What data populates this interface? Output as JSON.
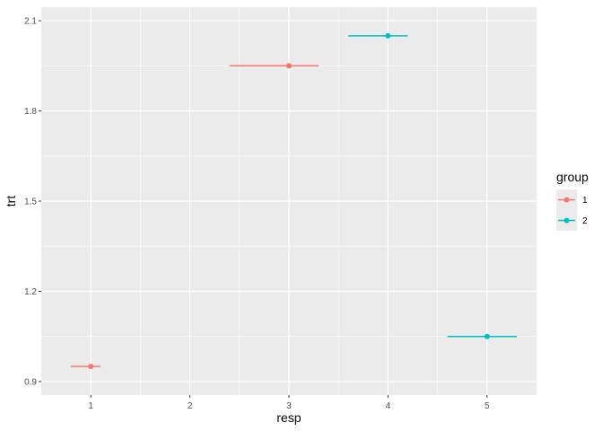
{
  "chart_data": {
    "type": "scatter",
    "title": "",
    "xlabel": "resp",
    "ylabel": "trt",
    "xlim": [
      0.5,
      5.5
    ],
    "ylim": [
      0.855,
      2.145
    ],
    "x_ticks": [
      1,
      2,
      3,
      4,
      5
    ],
    "y_ticks": [
      0.9,
      1.2,
      1.5,
      1.8,
      2.1
    ],
    "y_tick_labels": [
      "0.9",
      "1.2",
      "1.5",
      "1.8",
      "2.1"
    ],
    "grid": true,
    "legend": {
      "title": "group",
      "placement": "right",
      "entries": [
        {
          "label": "1",
          "color": "#F8766D"
        },
        {
          "label": "2",
          "color": "#00BFC4"
        }
      ]
    },
    "points": [
      {
        "group": "1",
        "x": 1,
        "y": 0.95,
        "xmin": 0.8,
        "xmax": 1.1
      },
      {
        "group": "1",
        "x": 3,
        "y": 1.95,
        "xmin": 2.4,
        "xmax": 3.3
      },
      {
        "group": "2",
        "x": 4,
        "y": 2.05,
        "xmin": 3.6,
        "xmax": 4.2
      },
      {
        "group": "2",
        "x": 5,
        "y": 1.05,
        "xmin": 4.6,
        "xmax": 5.3
      }
    ]
  }
}
